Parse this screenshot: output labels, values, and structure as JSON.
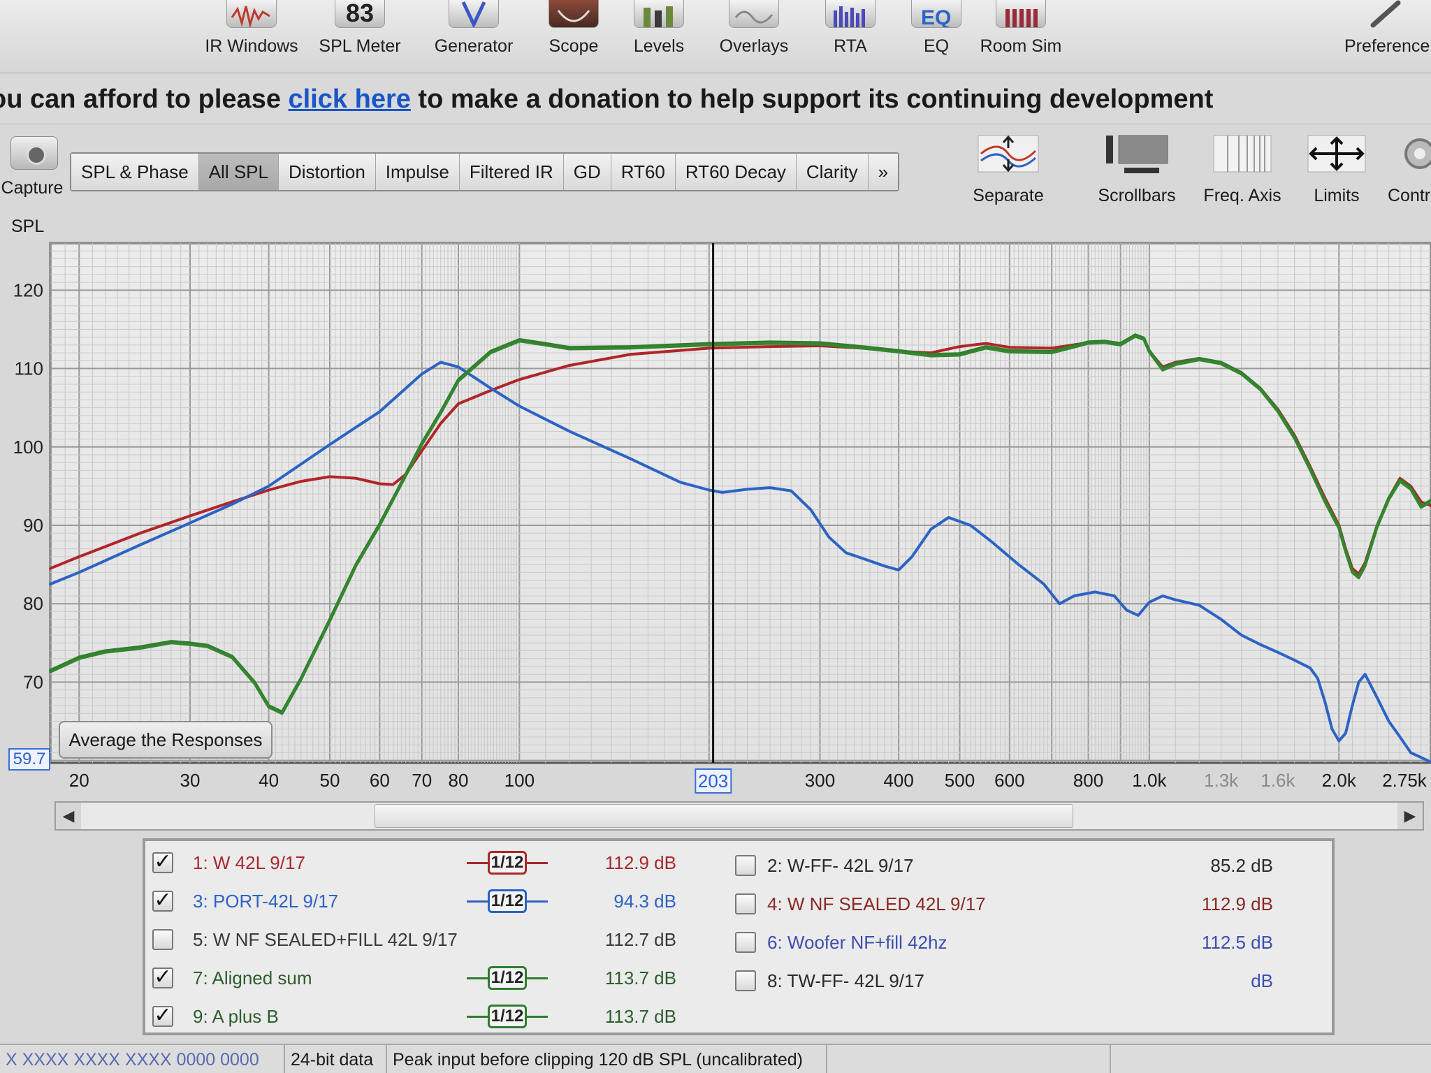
{
  "toolbar": {
    "items": [
      {
        "label": "IR Windows",
        "icon": "ir-windows-icon"
      },
      {
        "label": "SPL Meter",
        "icon_text": "83"
      },
      {
        "label": "Generator",
        "icon": "generator-icon"
      },
      {
        "label": "Scope",
        "icon": "scope-icon"
      },
      {
        "label": "Levels",
        "icon": "levels-icon"
      },
      {
        "label": "Overlays",
        "icon": "overlays-icon"
      },
      {
        "label": "RTA",
        "icon": "rta-icon"
      },
      {
        "label": "EQ",
        "icon": "eq-icon"
      },
      {
        "label": "Room Sim",
        "icon": "room-sim-icon"
      },
      {
        "label": "Preference",
        "icon": "preferences-icon"
      }
    ]
  },
  "banner": {
    "before": "ou can afford to please ",
    "link": "click here",
    "after": " to make a donation to help support its continuing development"
  },
  "capture": {
    "label": "Capture"
  },
  "tabs": [
    "SPL & Phase",
    "All SPL",
    "Distortion",
    "Impulse",
    "Filtered IR",
    "GD",
    "RT60",
    "RT60 Decay",
    "Clarity",
    "»"
  ],
  "active_tab": "All SPL",
  "graph_tools": [
    {
      "label": "Separate"
    },
    {
      "label": "Scrollbars"
    },
    {
      "label": "Freq. Axis"
    },
    {
      "label": "Limits"
    },
    {
      "label": "Contr"
    }
  ],
  "graph": {
    "y_axis_label": "SPL",
    "min_value_box": "59.7",
    "cursor_x_label": "203",
    "average_button": "Average the Responses",
    "y_ticks": [
      "120",
      "110",
      "100",
      "90",
      "80",
      "70"
    ],
    "x_ticks": [
      {
        "label": "20",
        "dim": false
      },
      {
        "label": "30",
        "dim": false
      },
      {
        "label": "40",
        "dim": false
      },
      {
        "label": "50",
        "dim": false
      },
      {
        "label": "60",
        "dim": false
      },
      {
        "label": "70",
        "dim": false
      },
      {
        "label": "80",
        "dim": false
      },
      {
        "label": "100",
        "dim": false
      },
      {
        "label": "300",
        "dim": false
      },
      {
        "label": "400",
        "dim": false
      },
      {
        "label": "500",
        "dim": false
      },
      {
        "label": "600",
        "dim": false
      },
      {
        "label": "800",
        "dim": false
      },
      {
        "label": "1.0k",
        "dim": false
      },
      {
        "label": "1.3k",
        "dim": true
      },
      {
        "label": "1.6k",
        "dim": true
      },
      {
        "label": "2.0k",
        "dim": false
      },
      {
        "label": "2.75k",
        "dim": false
      }
    ]
  },
  "chart_data": {
    "type": "line",
    "title": "",
    "xlabel": "",
    "ylabel": "SPL",
    "x_scale": "log",
    "xlim": [
      18,
      2800
    ],
    "ylim": [
      59.7,
      126
    ],
    "grid": true,
    "cursor_x": 203,
    "series": [
      {
        "name": "1: W 42L 9/17",
        "color": "#b0262a",
        "points": [
          [
            18,
            84.5
          ],
          [
            20,
            86
          ],
          [
            25,
            89
          ],
          [
            30,
            91.2
          ],
          [
            35,
            93
          ],
          [
            40,
            94.5
          ],
          [
            45,
            95.6
          ],
          [
            50,
            96.2
          ],
          [
            55,
            96
          ],
          [
            60,
            95.3
          ],
          [
            63,
            95.2
          ],
          [
            66,
            96.5
          ],
          [
            70,
            99.5
          ],
          [
            75,
            103
          ],
          [
            80,
            105.5
          ],
          [
            90,
            107.2
          ],
          [
            100,
            108.6
          ],
          [
            120,
            110.4
          ],
          [
            150,
            111.8
          ],
          [
            200,
            112.6
          ],
          [
            250,
            112.8
          ],
          [
            300,
            112.9
          ],
          [
            350,
            112.6
          ],
          [
            400,
            112.2
          ],
          [
            450,
            112
          ],
          [
            500,
            112.8
          ],
          [
            550,
            113.2
          ],
          [
            600,
            112.7
          ],
          [
            700,
            112.6
          ],
          [
            800,
            113.3
          ],
          [
            850,
            113.4
          ],
          [
            900,
            113.1
          ],
          [
            950,
            114.2
          ],
          [
            980,
            113.8
          ],
          [
            1000,
            112.2
          ],
          [
            1050,
            110.2
          ],
          [
            1100,
            110.8
          ],
          [
            1200,
            111.3
          ],
          [
            1300,
            110.6
          ],
          [
            1400,
            109.3
          ],
          [
            1500,
            107.5
          ],
          [
            1600,
            104.8
          ],
          [
            1700,
            101.5
          ],
          [
            1800,
            97.5
          ],
          [
            1900,
            93.5
          ],
          [
            2000,
            90
          ],
          [
            2050,
            87
          ],
          [
            2100,
            84.5
          ],
          [
            2150,
            83.8
          ],
          [
            2200,
            85.2
          ],
          [
            2300,
            90
          ],
          [
            2400,
            93.5
          ],
          [
            2500,
            96
          ],
          [
            2600,
            95
          ],
          [
            2700,
            93
          ],
          [
            2800,
            92.5
          ]
        ]
      },
      {
        "name": "3: PORT-42L 9/17",
        "color": "#2c63c4",
        "points": [
          [
            18,
            82.5
          ],
          [
            20,
            84
          ],
          [
            25,
            87.5
          ],
          [
            30,
            90.3
          ],
          [
            35,
            92.7
          ],
          [
            40,
            95
          ],
          [
            45,
            97.8
          ],
          [
            50,
            100.3
          ],
          [
            55,
            102.5
          ],
          [
            60,
            104.5
          ],
          [
            65,
            107
          ],
          [
            70,
            109.3
          ],
          [
            75,
            110.8
          ],
          [
            80,
            110.2
          ],
          [
            90,
            107.5
          ],
          [
            100,
            105.2
          ],
          [
            120,
            102
          ],
          [
            150,
            98.5
          ],
          [
            180,
            95.5
          ],
          [
            200,
            94.5
          ],
          [
            210,
            94.2
          ],
          [
            230,
            94.6
          ],
          [
            250,
            94.8
          ],
          [
            270,
            94.4
          ],
          [
            290,
            92
          ],
          [
            310,
            88.5
          ],
          [
            330,
            86.5
          ],
          [
            350,
            85.8
          ],
          [
            380,
            84.8
          ],
          [
            400,
            84.3
          ],
          [
            420,
            86
          ],
          [
            450,
            89.5
          ],
          [
            480,
            91
          ],
          [
            520,
            90
          ],
          [
            560,
            88
          ],
          [
            620,
            85
          ],
          [
            680,
            82.5
          ],
          [
            720,
            80
          ],
          [
            760,
            81
          ],
          [
            820,
            81.5
          ],
          [
            880,
            81
          ],
          [
            920,
            79.2
          ],
          [
            960,
            78.5
          ],
          [
            1000,
            80.2
          ],
          [
            1050,
            81
          ],
          [
            1100,
            80.5
          ],
          [
            1200,
            79.8
          ],
          [
            1300,
            78
          ],
          [
            1400,
            76
          ],
          [
            1500,
            74.8
          ],
          [
            1600,
            73.8
          ],
          [
            1700,
            72.8
          ],
          [
            1800,
            71.8
          ],
          [
            1850,
            70.5
          ],
          [
            1900,
            67.5
          ],
          [
            1950,
            64
          ],
          [
            2000,
            62.5
          ],
          [
            2050,
            63.5
          ],
          [
            2100,
            67
          ],
          [
            2150,
            70
          ],
          [
            2200,
            71
          ],
          [
            2300,
            68
          ],
          [
            2400,
            65
          ],
          [
            2500,
            63
          ],
          [
            2600,
            61
          ],
          [
            2800,
            59.8
          ]
        ]
      },
      {
        "name": "7: Aligned sum",
        "color": "#2f7d2f",
        "points": [
          [
            18,
            71.5
          ],
          [
            20,
            73.2
          ],
          [
            22,
            74
          ],
          [
            25,
            74.5
          ],
          [
            28,
            75.2
          ],
          [
            30,
            75
          ],
          [
            32,
            74.7
          ],
          [
            35,
            73.3
          ],
          [
            38,
            70
          ],
          [
            40,
            67
          ],
          [
            42,
            66.2
          ],
          [
            45,
            70.5
          ],
          [
            50,
            78
          ],
          [
            55,
            85
          ],
          [
            60,
            90.2
          ],
          [
            65,
            95.5
          ],
          [
            70,
            100.5
          ],
          [
            75,
            104.5
          ],
          [
            80,
            108.6
          ],
          [
            90,
            112.2
          ],
          [
            100,
            113.7
          ],
          [
            110,
            113.2
          ],
          [
            120,
            112.7
          ],
          [
            150,
            112.8
          ],
          [
            200,
            113.2
          ],
          [
            250,
            113.4
          ],
          [
            300,
            113.3
          ],
          [
            350,
            112.8
          ],
          [
            400,
            112.3
          ],
          [
            450,
            111.8
          ],
          [
            500,
            111.9
          ],
          [
            550,
            112.8
          ],
          [
            600,
            112.3
          ],
          [
            700,
            112.2
          ],
          [
            800,
            113.4
          ],
          [
            850,
            113.5
          ],
          [
            900,
            113.2
          ],
          [
            950,
            114.3
          ],
          [
            980,
            113.9
          ],
          [
            1000,
            112.3
          ],
          [
            1050,
            110
          ],
          [
            1100,
            110.7
          ],
          [
            1200,
            111.3
          ],
          [
            1300,
            110.8
          ],
          [
            1400,
            109.5
          ],
          [
            1500,
            107.5
          ],
          [
            1600,
            104.7
          ],
          [
            1700,
            101.3
          ],
          [
            1800,
            97.3
          ],
          [
            1900,
            93.2
          ],
          [
            2000,
            89.8
          ],
          [
            2050,
            86.8
          ],
          [
            2100,
            84.2
          ],
          [
            2150,
            83.5
          ],
          [
            2200,
            85
          ],
          [
            2300,
            90
          ],
          [
            2400,
            93.5
          ],
          [
            2500,
            95.8
          ],
          [
            2600,
            94.8
          ],
          [
            2700,
            92.5
          ],
          [
            2800,
            93.2
          ]
        ]
      },
      {
        "name": "9: A plus B",
        "color": "#35862f",
        "points": [
          [
            18,
            71.3
          ],
          [
            20,
            73
          ],
          [
            22,
            73.8
          ],
          [
            25,
            74.3
          ],
          [
            28,
            75
          ],
          [
            30,
            74.8
          ],
          [
            32,
            74.5
          ],
          [
            35,
            73.1
          ],
          [
            38,
            69.8
          ],
          [
            40,
            66.8
          ],
          [
            42,
            66
          ],
          [
            45,
            70.3
          ],
          [
            50,
            77.8
          ],
          [
            55,
            84.8
          ],
          [
            60,
            90
          ],
          [
            65,
            95.3
          ],
          [
            70,
            100.3
          ],
          [
            75,
            104.3
          ],
          [
            80,
            108.4
          ],
          [
            90,
            112
          ],
          [
            100,
            113.5
          ],
          [
            110,
            113
          ],
          [
            120,
            112.5
          ],
          [
            150,
            112.6
          ],
          [
            200,
            113
          ],
          [
            250,
            113.2
          ],
          [
            300,
            113.1
          ],
          [
            350,
            112.6
          ],
          [
            400,
            112.1
          ],
          [
            450,
            111.6
          ],
          [
            500,
            111.7
          ],
          [
            550,
            112.6
          ],
          [
            600,
            112.1
          ],
          [
            700,
            112
          ],
          [
            800,
            113.2
          ],
          [
            850,
            113.3
          ],
          [
            900,
            113
          ],
          [
            950,
            114.1
          ],
          [
            980,
            113.7
          ],
          [
            1000,
            112.1
          ],
          [
            1050,
            109.8
          ],
          [
            1100,
            110.5
          ],
          [
            1200,
            111.1
          ],
          [
            1300,
            110.6
          ],
          [
            1400,
            109.3
          ],
          [
            1500,
            107.3
          ],
          [
            1600,
            104.5
          ],
          [
            1700,
            101.1
          ],
          [
            1800,
            97.1
          ],
          [
            1900,
            93
          ],
          [
            2000,
            89.6
          ],
          [
            2050,
            86.6
          ],
          [
            2100,
            84
          ],
          [
            2150,
            83.3
          ],
          [
            2200,
            84.8
          ],
          [
            2300,
            89.8
          ],
          [
            2400,
            93.3
          ],
          [
            2500,
            95.6
          ],
          [
            2600,
            94.6
          ],
          [
            2700,
            92.3
          ],
          [
            2800,
            93
          ]
        ]
      }
    ]
  },
  "legend": {
    "left": [
      {
        "name": "1: W 42L 9/17",
        "checked": true,
        "smoothing": "1/12",
        "color": "#a8282c",
        "value": "112.9 dB"
      },
      {
        "name": "3: PORT-42L 9/17",
        "checked": true,
        "smoothing": "1/12",
        "color": "#2c63c4",
        "value": "94.3 dB"
      },
      {
        "name": "5: W NF SEALED+FILL 42L 9/17",
        "checked": false,
        "smoothing": "",
        "color": "#3a3a3a",
        "value": "112.7 dB"
      },
      {
        "name": "7: Aligned sum",
        "checked": true,
        "smoothing": "1/12",
        "color": "#2e7d2e",
        "value": "113.7 dB"
      },
      {
        "name": "9: A plus B",
        "checked": true,
        "smoothing": "1/12",
        "color": "#2e7d2e",
        "value": "113.7 dB"
      }
    ],
    "right": [
      {
        "name": "2: W-FF- 42L 9/17",
        "checked": false,
        "color": "#2a2a2a",
        "value": "85.2 dB"
      },
      {
        "name": "4: W NF SEALED 42L 9/17",
        "checked": false,
        "color": "#8a2a24",
        "value": "112.9 dB"
      },
      {
        "name": "6: Woofer NF+fill 42hz",
        "checked": false,
        "color": "#3c4fb0",
        "value": "112.5 dB"
      },
      {
        "name": "8: TW-FF- 42L 9/17",
        "checked": false,
        "color": "#2a2a2a",
        "value": "dB"
      }
    ]
  },
  "status": {
    "cell1": "X XXXX XXXX XXXX 0000 0000",
    "cell2": "24-bit data",
    "cell3": "Peak input before clipping 120 dB SPL (uncalibrated)"
  }
}
